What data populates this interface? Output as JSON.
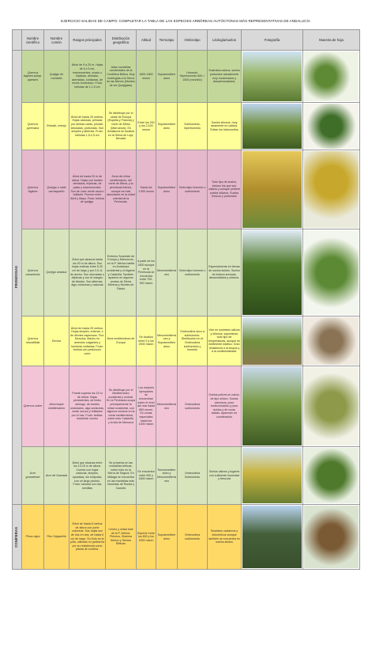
{
  "title": "EJERCICIO SALIDAS DE CAMPO: COMPLETAR LA TABLA DE LAS ESPECIES ARBÓREAS AUTÓCTONAS MÁS REPRESENTATIVAS DE ANDALUCÍA",
  "header": [
    "Nombre científico",
    "Nombre común",
    "Rasgos principales",
    "Distribución geográfica",
    "Altitud",
    "Termotipo",
    "Ombrotipo",
    "Litología/suelos",
    "Fotografía",
    "Muestra de hoja"
  ],
  "groups": [
    "FRONDOSAS",
    "CONÍFERAS"
  ],
  "rows": [
    [
      "Quercus faginea subsp. alpestris",
      "Quejigo de montaña",
      "Árbol de 9 a 20 m. Hojas de 6 x 5 cm, marcescentes, ovado u elípticas, dentado-aserradas, coriáceas, de envés tomentoso. Fruto: bellotas de 1-1,5 cm",
      "Altas montañas occidentales de la Cordillera Bética. Muy restringida a la Sierra de las Nieves (Montes de los Quejigales)",
      "1600-1800 msnm",
      "Supramediterráneo",
      "Húmedo-Hiperhúmedo 800 > 1000 (mm/año)",
      "Sustratos calizos, suelos profundos actualmente muy erosionados y descarbonatados."
    ],
    [
      "Quercus pyrenaica",
      "Rebollo, melojo",
      "Árbol de hasta 25 metros. Hojas caducas, pelosas por ambas caras, pinnati-lobuladas, profundas. Son simples y alternas. Fruto: bellotas 1,5-2,5 cm",
      "Se distribuye por el oeste de Europa (España y Francia) y norte de África (Marruecos). En Andalucía se localiza en la Sierra de Loja, Nevada",
      "Entre los 200 y los 2.100 msnm",
      "Supramediterráneo",
      "Subhúmedo-hiperhúmedo",
      "Suelos silíceos, muy raramente en calizos. Evitan los hidromorfos"
    ],
    [
      "Quercus faginea",
      "Quejigo o roble carrasqueño",
      "Árbol de hasta 20 m de altura. Hojas con bordes dentados, elípticas, de palas y marcescentes. Son de color verde oscuro brillante. Florece entre Abril y Mayo. Fruto: bellota de quejigo.",
      "Zona del clima mediterráneo, del norte de África, y la península Ibérica, aunque es más abundante en la mitad oriental de la Península.",
      "Hasta los 1.900 msnm",
      "Supramediterráneo",
      "Ombrotipo húmedo o subhúmedo",
      "Todo tipo de suelos, incluso los que son calizos y aunque prefiere suelos silíceos. Suelos frescos y profundos"
    ],
    [
      "Quercus canariensis",
      "Quejigo andaluz",
      "Árbol que alcanza hasta los 30 m de altura. Son hojas enteras entre 5-20 cm de largo y por 2,5-11 de ancho. Son obovadas o elípticas y con el margen de lóbulos. Son alternas, algo coriáceas y caducas",
      "Extremo Sudoeste de Europa y Marruecos, en la P. Ibérica habita en Andalucía occidental y el Algarve y Cataluña. También aparece en algunos puntos de Sierra Morena y Montes de Toledo",
      "A partir de los 1600 aunque en la Península se encuentra entre 700-900 msnm",
      "Mesomediterráneo",
      "Ombrotipo húmedo o subhúmedo",
      "Especialmente en tierras de suelos ácidos. Suelos de textura arenosa, desarrollados y silíceos."
    ],
    [
      "Quercus rotundifolia",
      "Encina",
      "Árbol de hasta 25 metros. Hojas simples, enteras, o de dientes espinosos. Flor: Monoica. Macho en amentos colgantes y hembras solitarias. Fruto: bellota con pedúnculo corto",
      "Área mediterránea de Europa",
      "Se localiza entre 0 y los 2000 msnm",
      "Mesomediterráneo y Supramediterráneo",
      "Ombroclima seco a subhúmedo. Distribución en el Ombroclima subhúmedo y húmedo",
      "Vive en sustratos calizos y silíceos, soportando todo tipo de temperaturas, aunque es indiferente edáfico. Gran resistencia a la sequía y a la continentalidad."
    ],
    [
      "Quercus suber",
      "Alcornoque mediterráneo",
      "Puede superar los 15 m de altura. Hojas persistentes, de limbo oblongo, de bordes ondulados, algo coriáceas, verde oscuro y brillantes por el haz. Fruto: bellota. Industrial: corcho",
      "Se distribuye por el Mediterráneo occidental y central. En la Península ocupa principalmente la mitad occidental, con algunos núcleos en la costa mediterránea, sobre todo Cataluña, y la isla de Menorca",
      "Los mejores ejemplares se encuentran sobre el nivel del mar hasta 850 msnm. En zonas especiales hasta los 1000 msnm",
      "Mesomediterráneo",
      "Ombroclima subhúmedo",
      "Suelos pobres en calcio, de tipo silíceo. Suelos arenosos, poco evolucionados y poco ácidos y de rocas ácidas. Aparecen en combinación"
    ],
    [
      "Acer granatense",
      "Arce de Granada",
      "Árbol que alcanza entre los 10-15 m de altura. Cuenta con hojas caducas, simples, opuestas, sin estípulas, con un largo peciolo. Fruto: sámara con dos semillas",
      "Se presenta en las montañas béticas, sobre todo en la Sierra de Segura. En Málaga se encuentra en las montañas más húmedas de Ronda y Cazorla",
      "Se encuentra entre 500 y 1800 msnm",
      "Termomediterráneo y Mesomediterráneo",
      "Ombroclima Subhúmedo",
      "Suelos calizos y lugares con suficiente humedad y frescura"
    ],
    [
      "Pinus nigra",
      "Pino Salgareño",
      "Árbol de hasta 8 metros de altura con porte columnar. Sus hojas son de dos en dos, de hasta 6 cm de largo. Su fruto es la piña, utilizado en jardinería por su resistencia como planta de sombra.",
      "Centro y mitad este de la P. Ibérica. Pirineos, Sistema Ibérico y Sierras Béticas",
      "Especie entre los 800 y los 2000 msnm",
      "Supramediterráneo",
      "Ombroclima subhúmedo",
      "Sustratos calcáreos y dolomíticos aunque también se encuentra en suelos ácidos"
    ]
  ]
}
